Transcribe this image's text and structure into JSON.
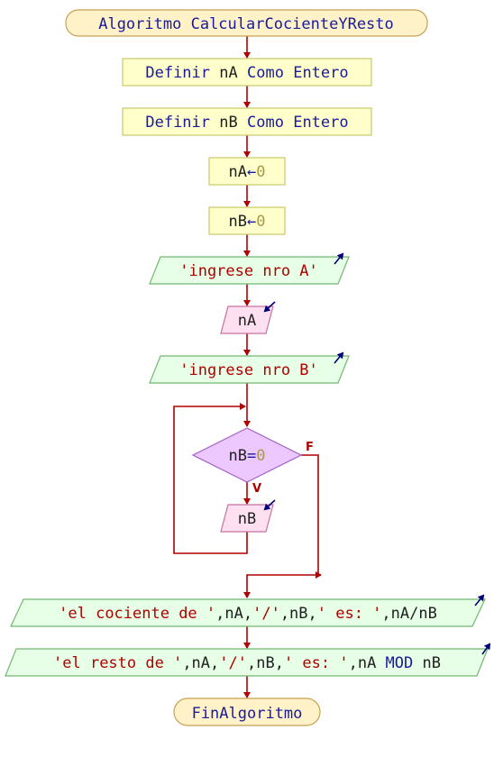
{
  "colors": {
    "arrow": "#b00000",
    "process_fill": "#ffffcc",
    "process_stroke": "#c8c86a",
    "terminal_fill": "#fff2c8",
    "terminal_stroke": "#c8a050",
    "output_fill": "#e6ffe6",
    "output_stroke": "#72b872",
    "input_fill": "#ffe0f0",
    "input_stroke": "#c870a0",
    "decision_fill": "#ecc8ff",
    "decision_stroke": "#a060c8",
    "keyword": "#1a1a9c",
    "identifier": "#202020",
    "number": "#a89a4a",
    "string": "#b00000",
    "io_arrow": "#00007a"
  },
  "flow": {
    "start": {
      "keyword": "Algoritmo",
      "name": "CalcularCocienteYResto"
    },
    "define_a": {
      "keyword": "Definir",
      "var": "nA",
      "como": "Como",
      "type": "Entero"
    },
    "define_b": {
      "keyword": "Definir",
      "var": "nB",
      "como": "Como",
      "type": "Entero"
    },
    "assign_a": {
      "var": "nA",
      "op": "←",
      "value": "0"
    },
    "assign_b": {
      "var": "nB",
      "op": "←",
      "value": "0"
    },
    "write_a": {
      "text": "'ingrese nro A'"
    },
    "read_a": {
      "var": "nA"
    },
    "write_b": {
      "text": "'ingrese nro B'"
    },
    "loop_condition": {
      "var": "nB",
      "op": "=",
      "value": "0"
    },
    "branch_true": "V",
    "branch_false": "F",
    "read_b": {
      "var": "nB"
    },
    "write_quotient": {
      "s1": "'el cociente de '",
      "c1": ",nA,",
      "s2": "'/'",
      "c2": ",nB,",
      "s3": "' es: '",
      "c3": ",nA/nB"
    },
    "write_remainder": {
      "s1": "'el resto de '",
      "c1": ",nA,",
      "s2": "'/'",
      "c2": ",nB,",
      "s3": "' es: '",
      "c3": ",nA ",
      "kw": "MOD",
      "c4": " nB"
    },
    "end": {
      "keyword": "FinAlgoritmo"
    }
  }
}
